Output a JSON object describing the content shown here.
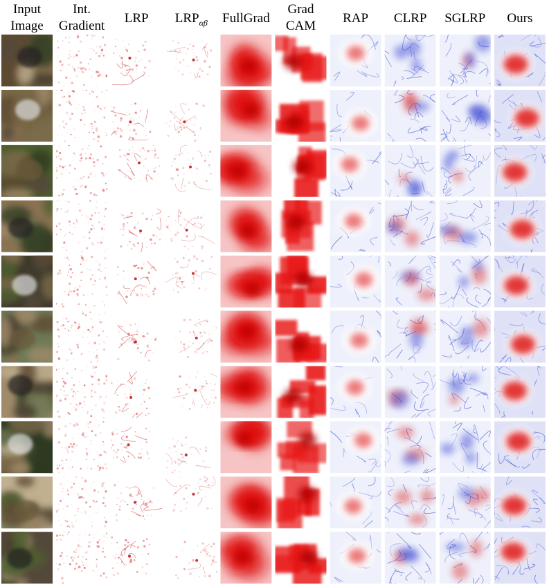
{
  "header": {
    "columns": [
      {
        "lines": [
          "Input",
          "Image"
        ]
      },
      {
        "lines": [
          "Int.",
          "Gradient"
        ]
      },
      {
        "lines": [
          "LRP"
        ]
      },
      {
        "lines": [
          "LRP"
        ],
        "subscript": "αβ"
      },
      {
        "lines": [
          "FullGrad"
        ]
      },
      {
        "lines": [
          "Grad",
          "CAM"
        ]
      },
      {
        "lines": [
          "RAP"
        ]
      },
      {
        "lines": [
          "CLRP"
        ]
      },
      {
        "lines": [
          "SGLRP"
        ]
      },
      {
        "lines": [
          "Ours"
        ]
      }
    ]
  }
}
